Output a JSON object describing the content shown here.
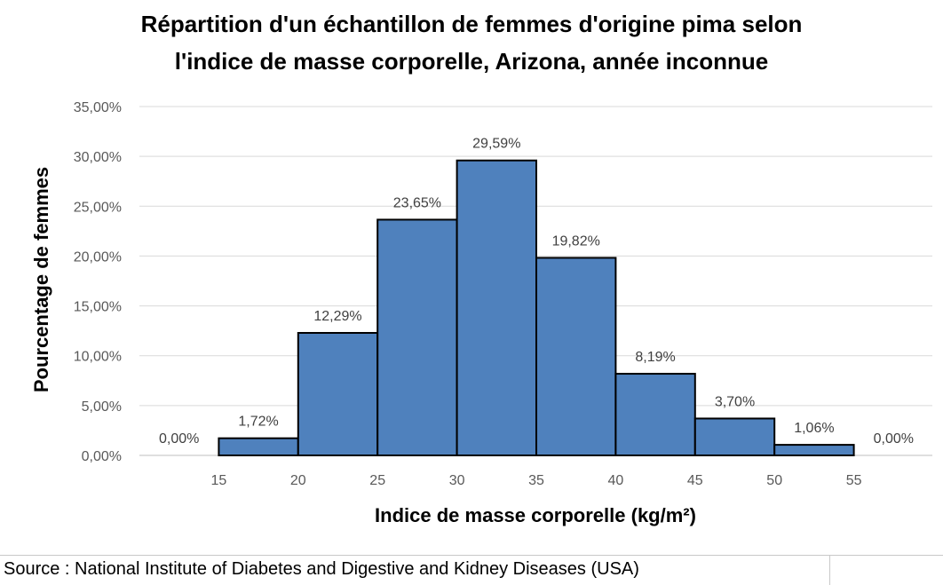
{
  "chart_data": {
    "type": "bar",
    "title_lines": [
      "Répartition d'un échantillon de femmes d'origine pima selon",
      "l'indice de masse corporelle, Arizona, année inconnue"
    ],
    "xlabel": "Indice de masse corporelle (kg/m²)",
    "ylabel": "Pourcentage de femmes",
    "x_ticks": [
      "15",
      "20",
      "25",
      "30",
      "35",
      "40",
      "45",
      "50",
      "55"
    ],
    "y_ticks": [
      "0,00%",
      "5,00%",
      "10,00%",
      "15,00%",
      "20,00%",
      "25,00%",
      "30,00%",
      "35,00%"
    ],
    "ylim": [
      0,
      35
    ],
    "grid": "horizontal",
    "bar_color": "#4f81bd",
    "bins": [
      {
        "x0": 10,
        "x1": 15,
        "value": 0.0,
        "label": "0,00%"
      },
      {
        "x0": 15,
        "x1": 20,
        "value": 1.72,
        "label": "1,72%"
      },
      {
        "x0": 20,
        "x1": 25,
        "value": 12.29,
        "label": "12,29%"
      },
      {
        "x0": 25,
        "x1": 30,
        "value": 23.65,
        "label": "23,65%"
      },
      {
        "x0": 30,
        "x1": 35,
        "value": 29.59,
        "label": "29,59%"
      },
      {
        "x0": 35,
        "x1": 40,
        "value": 19.82,
        "label": "19,82%"
      },
      {
        "x0": 40,
        "x1": 45,
        "value": 8.19,
        "label": "8,19%"
      },
      {
        "x0": 45,
        "x1": 50,
        "value": 3.7,
        "label": "3,70%"
      },
      {
        "x0": 50,
        "x1": 55,
        "value": 1.06,
        "label": "1,06%"
      },
      {
        "x0": 55,
        "x1": 60,
        "value": 0.0,
        "label": "0,00%"
      }
    ]
  },
  "source": "Source : National Institute of Diabetes and Digestive and Kidney Diseases (USA)"
}
